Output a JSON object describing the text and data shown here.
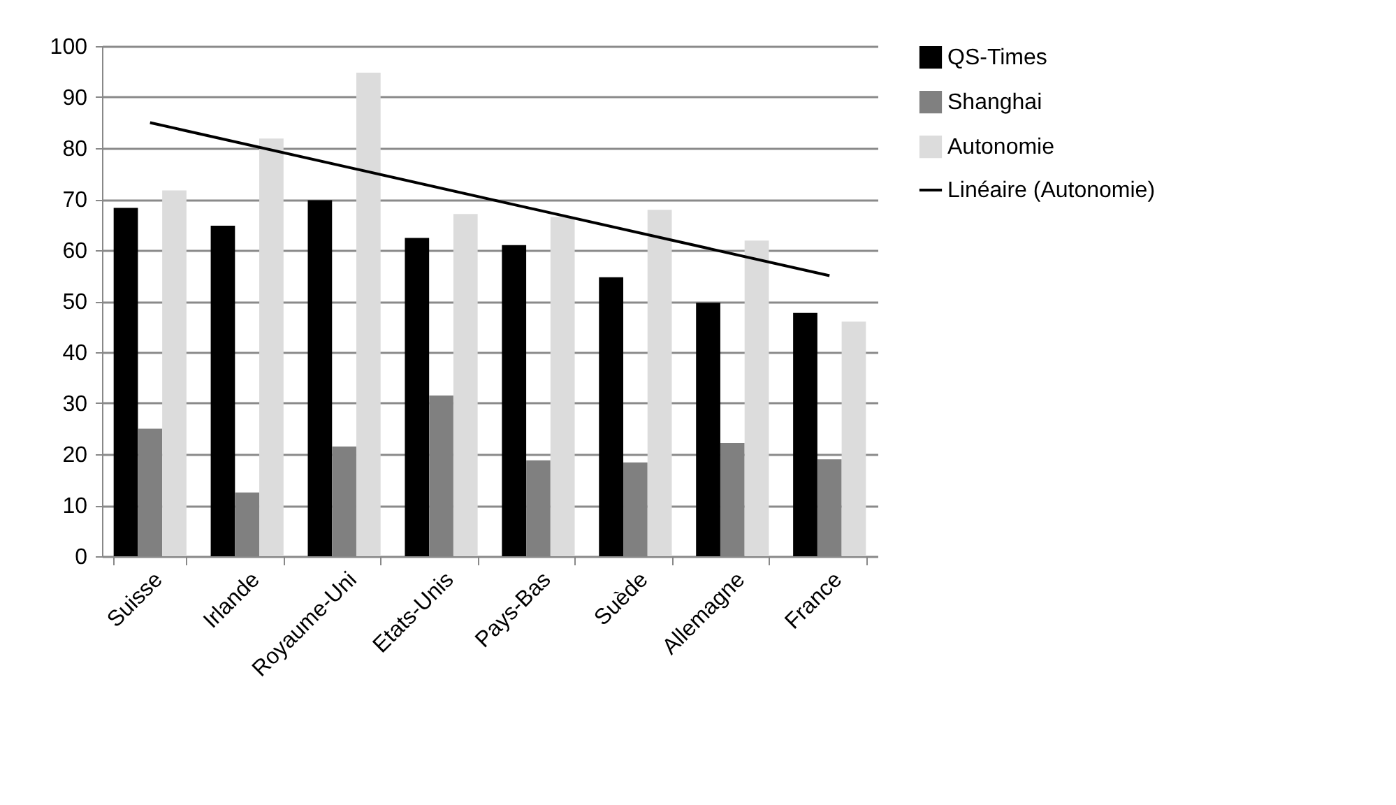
{
  "chart_data": {
    "type": "bar",
    "categories": [
      "Suisse",
      "Irlande",
      "Royaume-Uni",
      "Etats-Unis",
      "Pays-Bas",
      "Suède",
      "Allemagne",
      "France"
    ],
    "series": [
      {
        "name": "QS-Times",
        "color": "#000000",
        "values": [
          68.3,
          64.8,
          69.8,
          62.4,
          61.0,
          54.7,
          49.7,
          47.7
        ]
      },
      {
        "name": "Shanghai",
        "color": "#808080",
        "values": [
          25.0,
          12.5,
          21.5,
          31.5,
          18.8,
          18.4,
          22.2,
          19.0
        ]
      },
      {
        "name": "Autonomie",
        "color": "#dcdcdc",
        "values": [
          71.7,
          81.9,
          94.8,
          67.1,
          66.5,
          67.9,
          61.9,
          46.0
        ]
      },
      {
        "name": "Linéaire (Autonomie)",
        "type": "line",
        "color": "#000000",
        "x": [
          "Suisse",
          "France"
        ],
        "values": [
          85,
          55
        ]
      }
    ],
    "ylim": [
      0,
      100
    ],
    "yticks": [
      0,
      10,
      20,
      30,
      40,
      50,
      60,
      70,
      80,
      90,
      100
    ],
    "grid": "y",
    "legend": "right"
  }
}
